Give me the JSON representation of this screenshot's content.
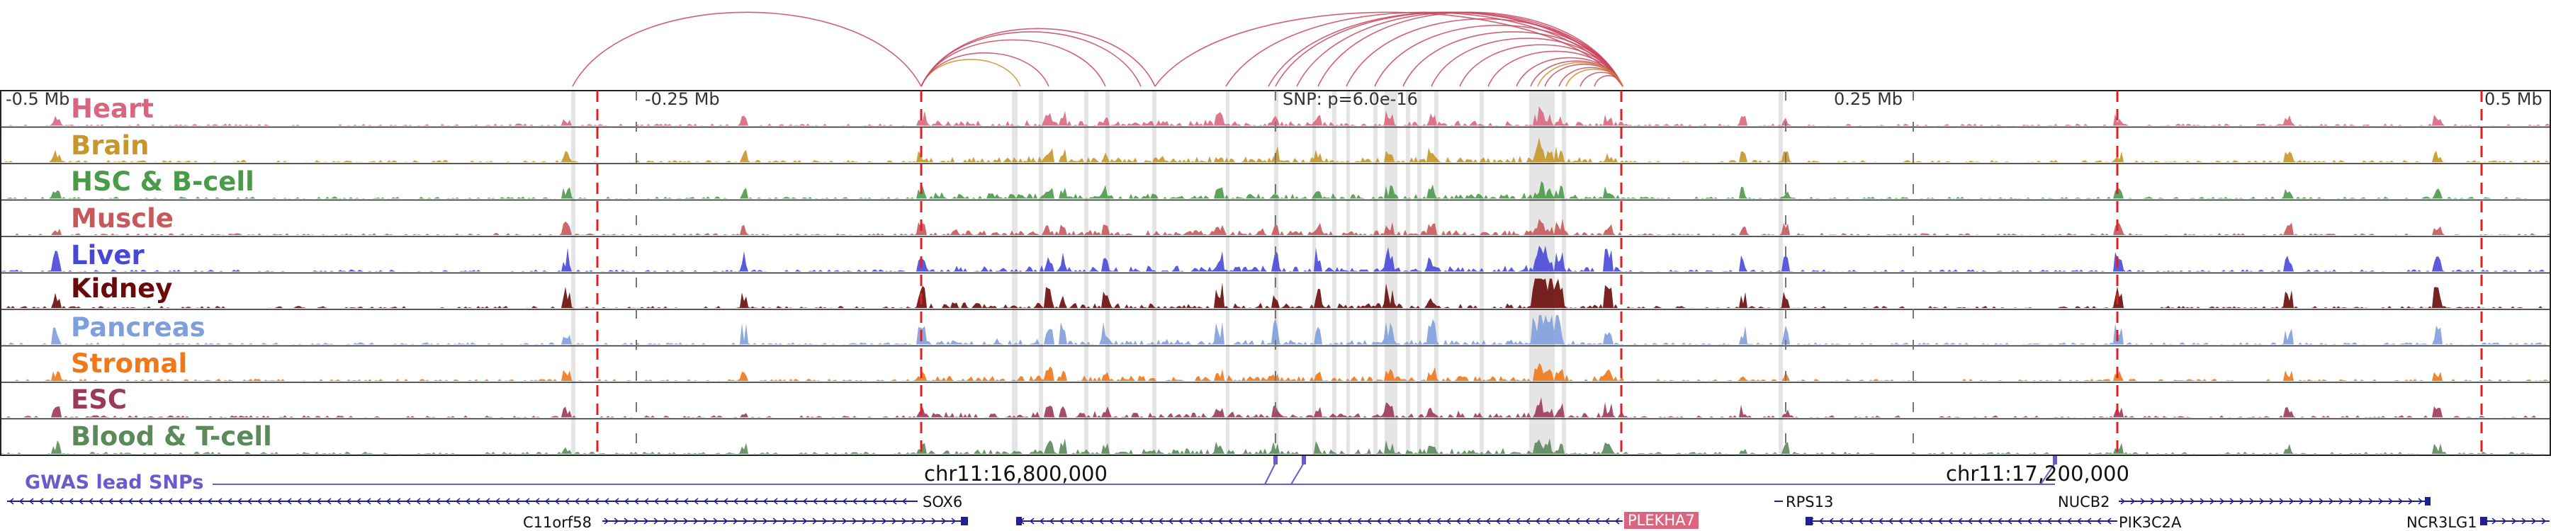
{
  "figure": {
    "scale_labels": [
      "-0.5 Mb",
      "-0.25 Mb",
      "SNP: p=6.0e-16",
      "0.25 Mb",
      "0.5 Mb"
    ],
    "coordinate_labels": [
      "chr11:16,800,000",
      "chr11:17,200,000"
    ],
    "gwas_label": "GWAS lead SNPs",
    "colors": {
      "loop_arc": "#c8465e",
      "loop_arc_alt": "#c8902a",
      "enhancer_shade": "#dedede",
      "boundary_dash": "#e02020",
      "gwas": "#6a5acd",
      "gene": "#1f1f8f"
    }
  },
  "tracks": [
    {
      "label": "Heart",
      "color": "#d9667e"
    },
    {
      "label": "Brain",
      "color": "#c8962a"
    },
    {
      "label": "HSC & B-cell",
      "color": "#4a9a4a"
    },
    {
      "label": "Muscle",
      "color": "#c8585a"
    },
    {
      "label": "Liver",
      "color": "#4848d8"
    },
    {
      "label": "Kidney",
      "color": "#6a0a0a"
    },
    {
      "label": "Pancreas",
      "color": "#7f9fda"
    },
    {
      "label": "Stromal",
      "color": "#f07818"
    },
    {
      "label": "ESC",
      "color": "#9a3a5a"
    },
    {
      "label": "Blood & T-cell",
      "color": "#5a8a5a"
    }
  ],
  "genes": [
    {
      "name": "SOX6",
      "strand": "-",
      "highlighted": false
    },
    {
      "name": "C11orf58",
      "strand": "+",
      "highlighted": false
    },
    {
      "name": "PLEKHA7",
      "strand": "-",
      "highlighted": true
    },
    {
      "name": "RPS13",
      "strand": "-",
      "highlighted": false
    },
    {
      "name": "NUCB2",
      "strand": "+",
      "highlighted": false
    },
    {
      "name": "PIK3C2A",
      "strand": "-",
      "highlighted": false
    },
    {
      "name": "NCR3LG1",
      "strand": "+",
      "highlighted": false
    }
  ]
}
